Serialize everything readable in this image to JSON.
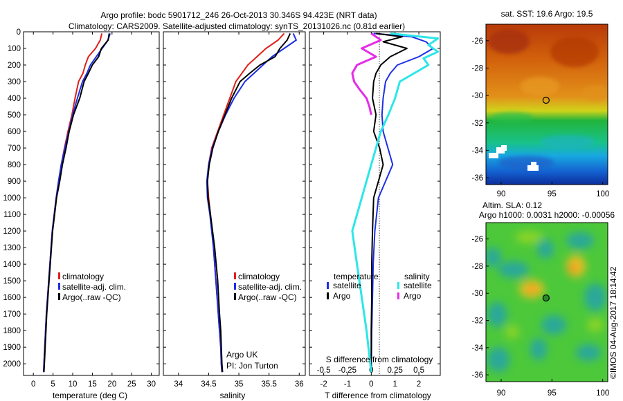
{
  "header": {
    "line1": "Argo profile: bodc 5901712_246 26-Oct-2013 30.346S 94.423E (NRT data)",
    "line2": "Climatology: CARS2009. Satellite-adjusted climatology: synTS_20131026.nc (0.81d earlier)"
  },
  "colors": {
    "climatology": "#e0201c",
    "satellite": "#1c2ee6",
    "argo": "#000000",
    "sat_salinity": "#2ce6e6",
    "argo_salinity": "#e62ce6"
  },
  "depth_ticks": [
    "0",
    "100",
    "200",
    "300",
    "400",
    "500",
    "600",
    "700",
    "800",
    "900",
    "1000",
    "1100",
    "1200",
    "1300",
    "1400",
    "1500",
    "1600",
    "1700",
    "1800",
    "1900",
    "2000"
  ],
  "footer": {
    "stamp": "©IMOS 04-Aug-2017 18:14:42"
  },
  "chart_data": [
    {
      "type": "line",
      "panel": "temperature",
      "xlabel": "temperature (deg C)",
      "ylabel": "",
      "xlim": [
        -2.5,
        32
      ],
      "ylim": [
        2070,
        0
      ],
      "y_reversed": true,
      "xticks": [
        "0",
        "5",
        "10",
        "15",
        "20",
        "25",
        "30"
      ],
      "legend": {
        "placement": "lower-center",
        "items": [
          "climatology",
          "satellite-adj. clim.",
          "Argo(..raw -QC)"
        ]
      },
      "series": [
        {
          "name": "climatology",
          "x": [
            17.4,
            17.0,
            15.8,
            14.0,
            13.2,
            12.6,
            11.5,
            10.6,
            9.8,
            8.8,
            7.9,
            7.1,
            6.4,
            5.8,
            5.3,
            4.8,
            4.5,
            4.2,
            3.9,
            3.6,
            3.3,
            3.1,
            2.9,
            2.8,
            2.7,
            2.6
          ],
          "y": [
            10,
            50,
            100,
            150,
            200,
            250,
            300,
            400,
            500,
            600,
            700,
            800,
            900,
            1000,
            1100,
            1200,
            1300,
            1400,
            1500,
            1600,
            1700,
            1800,
            1900,
            1950,
            2000,
            2050
          ]
        },
        {
          "name": "satellite-adj. clim.",
          "x": [
            19.5,
            19.0,
            17.5,
            16.0,
            14.5,
            13.6,
            12.5,
            11.2,
            10.0,
            9.0,
            8.0,
            7.1,
            6.4,
            5.8,
            5.3,
            4.8,
            4.5,
            4.2,
            3.9,
            3.6,
            3.3,
            3.1,
            2.9,
            2.8,
            2.7,
            2.6
          ],
          "y": [
            10,
            50,
            100,
            150,
            200,
            250,
            300,
            400,
            500,
            600,
            700,
            800,
            900,
            1000,
            1100,
            1200,
            1300,
            1400,
            1500,
            1600,
            1700,
            1800,
            1900,
            1950,
            2000,
            2050
          ]
        },
        {
          "name": "Argo(..raw -QC)",
          "x": [
            19.3,
            19.0,
            17.3,
            16.6,
            15.0,
            14.0,
            12.9,
            11.8,
            10.2,
            9.1,
            8.3,
            7.4,
            6.7,
            5.9,
            5.4,
            4.9,
            4.6,
            4.3,
            4.0,
            3.7,
            3.4,
            3.2,
            3.0,
            2.9,
            2.8,
            2.7
          ],
          "y": [
            10,
            50,
            100,
            150,
            200,
            250,
            300,
            400,
            500,
            600,
            700,
            800,
            900,
            1000,
            1100,
            1200,
            1300,
            1400,
            1500,
            1600,
            1700,
            1800,
            1900,
            1950,
            2000,
            2050
          ]
        }
      ]
    },
    {
      "type": "line",
      "panel": "salinity",
      "xlabel": "salinity",
      "ylabel": "",
      "xlim": [
        33.75,
        36.1
      ],
      "ylim": [
        2070,
        0
      ],
      "y_reversed": true,
      "xticks": [
        "34",
        "34.5",
        "35",
        "35.5",
        "36"
      ],
      "legend": {
        "placement": "lower-center",
        "items": [
          "climatology",
          "satellite-adj. clim.",
          "Argo(..raw -QC)"
        ]
      },
      "annotation": [
        "Argo UK",
        "PI: Jon Turton"
      ],
      "series": [
        {
          "name": "climatology",
          "x": [
            35.75,
            35.65,
            35.45,
            35.3,
            35.15,
            35.05,
            34.95,
            34.85,
            34.75,
            34.65,
            34.55,
            34.5,
            34.48,
            34.5,
            34.53,
            34.58,
            34.62,
            34.66,
            34.68,
            34.7,
            34.71,
            34.72
          ],
          "y": [
            10,
            50,
            100,
            150,
            200,
            250,
            300,
            400,
            500,
            600,
            700,
            800,
            900,
            1000,
            1100,
            1300,
            1500,
            1700,
            1800,
            1900,
            2000,
            2050
          ]
        },
        {
          "name": "satellite-adj. clim.",
          "x": [
            35.9,
            35.95,
            35.75,
            35.55,
            35.4,
            35.25,
            35.1,
            34.92,
            34.78,
            34.66,
            34.56,
            34.5,
            34.47,
            34.48,
            34.52,
            34.58,
            34.62,
            34.66,
            34.68,
            34.7,
            34.71,
            34.72
          ],
          "y": [
            10,
            50,
            100,
            150,
            200,
            250,
            300,
            400,
            500,
            600,
            700,
            800,
            900,
            1000,
            1100,
            1300,
            1500,
            1700,
            1800,
            1900,
            2000,
            2050
          ]
        },
        {
          "name": "Argo(..raw -QC)",
          "x": [
            35.85,
            35.8,
            35.68,
            35.6,
            35.35,
            35.18,
            35.02,
            34.88,
            34.77,
            34.66,
            34.57,
            34.51,
            34.48,
            34.49,
            34.53,
            34.6,
            34.65,
            34.68,
            34.7,
            34.71,
            34.72,
            34.73
          ],
          "y": [
            10,
            50,
            100,
            150,
            200,
            250,
            300,
            400,
            500,
            600,
            700,
            800,
            900,
            1000,
            1100,
            1300,
            1500,
            1700,
            1800,
            1900,
            2000,
            2050
          ]
        }
      ]
    },
    {
      "type": "line",
      "panel": "difference",
      "xlabel": "T difference from climatology",
      "xlabel_top": "S difference from climatology",
      "xlim": [
        -2.6,
        2.9
      ],
      "ylim": [
        2070,
        0
      ],
      "y_reversed": true,
      "xticks_T": [
        "-2",
        "-1",
        "0",
        "1",
        "2"
      ],
      "xticks_S": [
        "-0.5",
        "-0.25",
        "0",
        "0.25",
        "0.5"
      ],
      "legend_temperature": {
        "title": "temperature",
        "items": [
          "satellite",
          "Argo"
        ]
      },
      "legend_salinity": {
        "title": "salinity",
        "items": [
          "satellite",
          "Argo"
        ]
      },
      "series": [
        {
          "name": "satellite",
          "group": "temperature",
          "x": [
            0.1,
            1.7,
            2.3,
            2.6,
            2.0,
            1.1,
            0.8,
            0.6,
            0.5,
            0.45,
            0.5,
            0.7,
            0.9,
            0.6,
            0.3,
            0.15,
            0.08,
            0.05,
            0.02,
            0.0
          ],
          "y": [
            10,
            30,
            60,
            100,
            150,
            200,
            250,
            300,
            400,
            500,
            600,
            700,
            800,
            900,
            1000,
            1200,
            1400,
            1600,
            1800,
            2050
          ]
        },
        {
          "name": "Argo",
          "group": "temperature",
          "x": [
            0.2,
            1.3,
            0.5,
            1.5,
            0.8,
            0.4,
            0.2,
            0.1,
            0.05,
            0.2,
            0.1,
            0.35,
            0.5,
            0.3,
            0.1,
            0.05,
            0.02,
            0.02,
            0.0,
            0.0
          ],
          "y": [
            10,
            30,
            60,
            100,
            150,
            200,
            250,
            300,
            400,
            500,
            600,
            700,
            800,
            900,
            1000,
            1200,
            1400,
            1600,
            1800,
            2050
          ]
        },
        {
          "name": "satellite",
          "group": "salinity",
          "x": [
            0.2,
            0.7,
            0.6,
            0.7,
            0.55,
            0.6,
            0.45,
            0.3,
            0.25,
            0.18,
            0.1,
            0.0,
            -0.1,
            -0.2,
            -0.15,
            -0.1,
            -0.05,
            -0.02,
            0.0
          ],
          "y": [
            10,
            40,
            80,
            120,
            160,
            200,
            250,
            300,
            400,
            500,
            600,
            800,
            1000,
            1200,
            1400,
            1600,
            1800,
            1950,
            2050
          ]
        },
        {
          "name": "Argo",
          "group": "salinity",
          "x": [
            0.0,
            0.1,
            -0.1,
            0.05,
            -0.15,
            -0.2,
            -0.18,
            -0.12,
            -0.05,
            -0.02,
            0.0
          ],
          "y": [
            10,
            50,
            100,
            150,
            200,
            250,
            300,
            350,
            400,
            450,
            500
          ]
        }
      ]
    },
    {
      "type": "heatmap",
      "panel": "sst-map",
      "title": "sat. SST: 19.6 Argo: 19.5",
      "xlim": [
        88.5,
        100.5
      ],
      "ylim": [
        -36.5,
        -24.8
      ],
      "xticks": [
        "90",
        "95",
        "100"
      ],
      "yticks": [
        "-26",
        "-28",
        "-30",
        "-32",
        "-34",
        "-36"
      ],
      "marker": {
        "lon": 94.423,
        "lat": -30.346
      }
    },
    {
      "type": "heatmap",
      "panel": "sla-map",
      "title": "Altim. SLA: 0.12",
      "subtitle": "Argo h1000: 0.0031 h2000: -0.00056",
      "xlim": [
        88.5,
        100.5
      ],
      "ylim": [
        -36.5,
        -24.8
      ],
      "xticks": [
        "90",
        "95",
        "100"
      ],
      "yticks": [
        "-26",
        "-28",
        "-30",
        "-32",
        "-34",
        "-36"
      ],
      "marker": {
        "lon": 94.423,
        "lat": -30.346
      }
    }
  ]
}
